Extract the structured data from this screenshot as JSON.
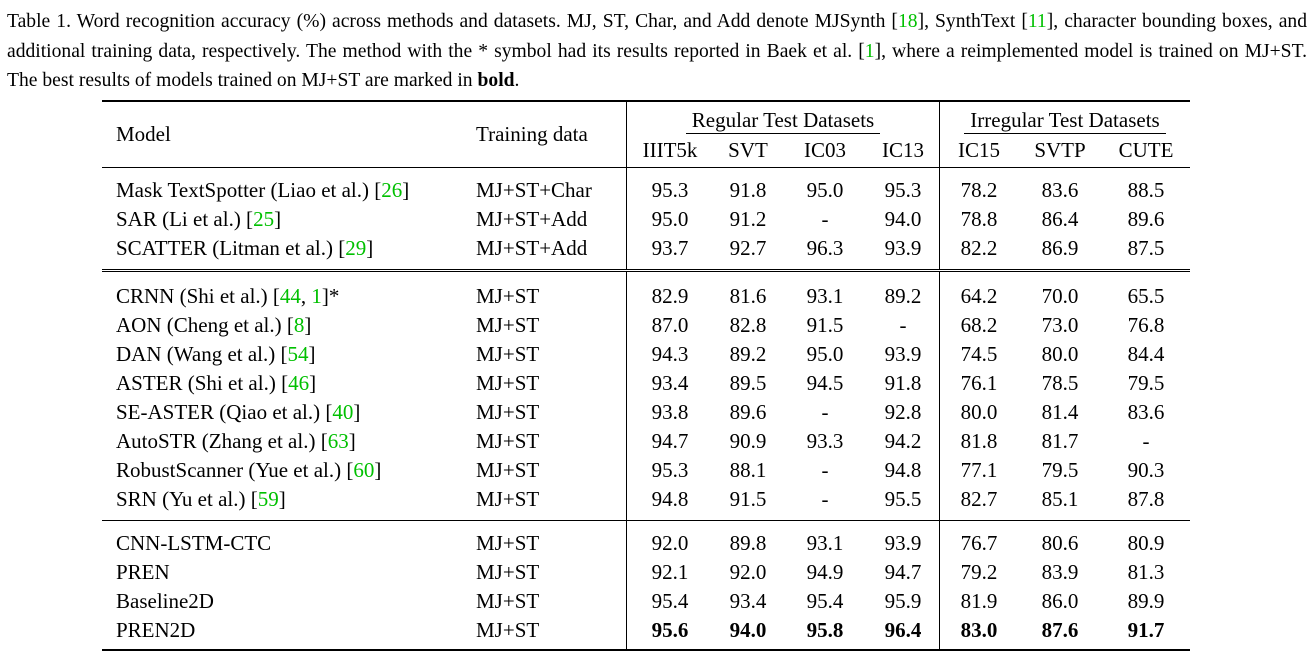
{
  "caption": {
    "prefix": "Table 1. Word recognition accuracy (%) across methods and datasets.  MJ, ST, Char, and Add denote MJSynth [",
    "cite_mj": "18",
    "after_mj": "], SynthText [",
    "cite_st": "11",
    "after_st": "], character bounding boxes, and additional training data, respectively.  The method with the * symbol had its results reported in Baek et al. [",
    "cite_baek": "1",
    "after_baek": "], where a reimplemented model is trained on MJ+ST. The best results of models trained on MJ+ST are marked in ",
    "bold_word": "bold",
    "suffix": "."
  },
  "table": {
    "col_model": "Model",
    "col_training": "Training data",
    "group_regular": "Regular Test Datasets",
    "group_irregular": "Irregular Test Datasets",
    "datasets": [
      "IIIT5k",
      "SVT",
      "IC03",
      "IC13",
      "IC15",
      "SVTP",
      "CUTE"
    ],
    "sections": [
      [
        {
          "name": "Mask TextSpotter (Liao et al.) [",
          "cite": "26",
          "tail": "]",
          "train": "MJ+ST+Char",
          "values": [
            "95.3",
            "91.8",
            "95.0",
            "95.3",
            "78.2",
            "83.6",
            "88.5"
          ]
        },
        {
          "name": "SAR (Li et al.) [",
          "cite": "25",
          "tail": "]",
          "train": "MJ+ST+Add",
          "values": [
            "95.0",
            "91.2",
            "-",
            "94.0",
            "78.8",
            "86.4",
            "89.6"
          ]
        },
        {
          "name": "SCATTER (Litman et al.) [",
          "cite": "29",
          "tail": "]",
          "train": "MJ+ST+Add",
          "values": [
            "93.7",
            "92.7",
            "96.3",
            "93.9",
            "82.2",
            "86.9",
            "87.5"
          ]
        }
      ],
      [
        {
          "name": "CRNN (Shi et al.) [",
          "cite": "44",
          "mid": ", ",
          "cite2": "1",
          "tail": "]*",
          "train": "MJ+ST",
          "values": [
            "82.9",
            "81.6",
            "93.1",
            "89.2",
            "64.2",
            "70.0",
            "65.5"
          ]
        },
        {
          "name": "AON (Cheng et al.) [",
          "cite": "8",
          "tail": "]",
          "train": "MJ+ST",
          "values": [
            "87.0",
            "82.8",
            "91.5",
            "-",
            "68.2",
            "73.0",
            "76.8"
          ]
        },
        {
          "name": "DAN (Wang et al.) [",
          "cite": "54",
          "tail": "]",
          "train": "MJ+ST",
          "values": [
            "94.3",
            "89.2",
            "95.0",
            "93.9",
            "74.5",
            "80.0",
            "84.4"
          ]
        },
        {
          "name": "ASTER (Shi et al.) [",
          "cite": "46",
          "tail": "]",
          "train": "MJ+ST",
          "values": [
            "93.4",
            "89.5",
            "94.5",
            "91.8",
            "76.1",
            "78.5",
            "79.5"
          ]
        },
        {
          "name": "SE-ASTER (Qiao et al.) [",
          "cite": "40",
          "tail": "]",
          "train": "MJ+ST",
          "values": [
            "93.8",
            "89.6",
            "-",
            "92.8",
            "80.0",
            "81.4",
            "83.6"
          ]
        },
        {
          "name": "AutoSTR (Zhang et al.) [",
          "cite": "63",
          "tail": "]",
          "train": "MJ+ST",
          "values": [
            "94.7",
            "90.9",
            "93.3",
            "94.2",
            "81.8",
            "81.7",
            "-"
          ]
        },
        {
          "name": "RobustScanner (Yue et al.) [",
          "cite": "60",
          "tail": "]",
          "train": "MJ+ST",
          "values": [
            "95.3",
            "88.1",
            "-",
            "94.8",
            "77.1",
            "79.5",
            "90.3"
          ]
        },
        {
          "name": "SRN (Yu et al.) [",
          "cite": "59",
          "tail": "]",
          "train": "MJ+ST",
          "values": [
            "94.8",
            "91.5",
            "-",
            "95.5",
            "82.7",
            "85.1",
            "87.8"
          ]
        }
      ],
      [
        {
          "name": "CNN-LSTM-CTC",
          "train": "MJ+ST",
          "values": [
            "92.0",
            "89.8",
            "93.1",
            "93.9",
            "76.7",
            "80.6",
            "80.9"
          ]
        },
        {
          "name": "PREN",
          "train": "MJ+ST",
          "values": [
            "92.1",
            "92.0",
            "94.9",
            "94.7",
            "79.2",
            "83.9",
            "81.3"
          ]
        },
        {
          "name": "Baseline2D",
          "train": "MJ+ST",
          "values": [
            "95.4",
            "93.4",
            "95.4",
            "95.9",
            "81.9",
            "86.0",
            "89.9"
          ]
        },
        {
          "name": "PREN2D",
          "train": "MJ+ST",
          "bold": true,
          "values": [
            "95.6",
            "94.0",
            "95.8",
            "96.4",
            "83.0",
            "87.6",
            "91.7"
          ]
        }
      ]
    ]
  }
}
